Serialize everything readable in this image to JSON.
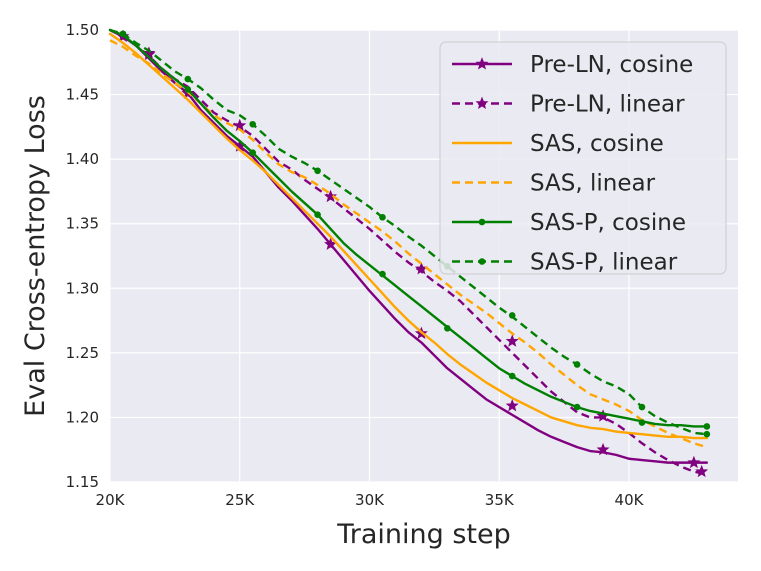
{
  "chart_data": {
    "type": "line",
    "title": "",
    "xlabel": "Training step",
    "ylabel": "Eval Cross-entropy Loss",
    "xlim": [
      20000,
      44200
    ],
    "ylim": [
      1.15,
      1.5
    ],
    "xticks": [
      20000,
      25000,
      30000,
      35000,
      40000
    ],
    "xtick_labels": [
      "20K",
      "25K",
      "30K",
      "35K",
      "40K"
    ],
    "yticks": [
      1.15,
      1.2,
      1.25,
      1.3,
      1.35,
      1.4,
      1.45,
      1.5
    ],
    "ytick_labels": [
      "1.15",
      "1.20",
      "1.25",
      "1.30",
      "1.35",
      "1.40",
      "1.45",
      "1.50"
    ],
    "grid": true,
    "legend_position": "top-right",
    "series": [
      {
        "name": "Pre-LN, cosine",
        "color": "#800080",
        "dash": "solid",
        "marker": "star",
        "x": [
          20000,
          20500,
          21000,
          21500,
          22000,
          22500,
          23000,
          23500,
          24000,
          24500,
          25000,
          25500,
          26000,
          26500,
          27000,
          27500,
          28000,
          28500,
          29000,
          29500,
          30000,
          30500,
          31000,
          31500,
          32000,
          32500,
          33000,
          33500,
          34000,
          34500,
          35000,
          35500,
          36000,
          36500,
          37000,
          37500,
          38000,
          38500,
          39000,
          39500,
          40000,
          40500,
          41000,
          41500,
          42000,
          42500,
          43000
        ],
        "y": [
          1.5,
          1.495,
          1.488,
          1.478,
          1.468,
          1.459,
          1.451,
          1.438,
          1.428,
          1.418,
          1.41,
          1.402,
          1.39,
          1.378,
          1.368,
          1.357,
          1.346,
          1.334,
          1.322,
          1.31,
          1.298,
          1.287,
          1.276,
          1.266,
          1.258,
          1.248,
          1.238,
          1.23,
          1.222,
          1.214,
          1.208,
          1.202,
          1.196,
          1.19,
          1.185,
          1.181,
          1.177,
          1.174,
          1.173,
          1.171,
          1.168,
          1.167,
          1.166,
          1.165,
          1.165,
          1.165,
          1.165
        ],
        "marker_x": [
          20500,
          21500,
          23000,
          25000,
          28500,
          32000,
          35500,
          39000,
          42500
        ],
        "marker_y": [
          1.495,
          1.482,
          1.451,
          1.41,
          1.334,
          1.265,
          1.209,
          1.175,
          1.165
        ]
      },
      {
        "name": "Pre-LN, linear",
        "color": "#800080",
        "dash": "dashed",
        "marker": "star",
        "x": [
          20000,
          20500,
          21000,
          21500,
          22000,
          22500,
          23000,
          23500,
          24000,
          24500,
          25000,
          25500,
          26000,
          26500,
          27000,
          27500,
          28000,
          28500,
          29000,
          29500,
          30000,
          30500,
          31000,
          31500,
          32000,
          32500,
          33000,
          33500,
          34000,
          34500,
          35000,
          35500,
          36000,
          36500,
          37000,
          37500,
          38000,
          38500,
          39000,
          39500,
          40000,
          40500,
          41000,
          41500,
          42000,
          42500,
          43000
        ],
        "y": [
          1.5,
          1.495,
          1.488,
          1.48,
          1.47,
          1.462,
          1.456,
          1.446,
          1.436,
          1.43,
          1.425,
          1.418,
          1.408,
          1.398,
          1.392,
          1.384,
          1.377,
          1.37,
          1.362,
          1.354,
          1.346,
          1.337,
          1.328,
          1.32,
          1.313,
          1.305,
          1.298,
          1.29,
          1.28,
          1.27,
          1.26,
          1.25,
          1.24,
          1.23,
          1.22,
          1.212,
          1.204,
          1.2,
          1.2,
          1.195,
          1.188,
          1.18,
          1.173,
          1.167,
          1.162,
          1.158,
          1.156
        ],
        "marker_x": [
          21500,
          25000,
          28500,
          32000,
          35500,
          39000,
          42800
        ],
        "marker_y": [
          1.481,
          1.426,
          1.371,
          1.315,
          1.259,
          1.201,
          1.158
        ]
      },
      {
        "name": "SAS, cosine",
        "color": "#FFA500",
        "dash": "solid",
        "marker": "none",
        "x": [
          20000,
          20500,
          21000,
          21500,
          22000,
          22500,
          23000,
          23500,
          24000,
          24500,
          25000,
          25500,
          26000,
          26500,
          27000,
          27500,
          28000,
          28500,
          29000,
          29500,
          30000,
          30500,
          31000,
          31500,
          32000,
          32500,
          33000,
          33500,
          34000,
          34500,
          35000,
          35500,
          36000,
          36500,
          37000,
          37500,
          38000,
          38500,
          39000,
          39500,
          40000,
          40500,
          41000,
          41500,
          42000,
          42500,
          43000
        ],
        "y": [
          1.497,
          1.49,
          1.482,
          1.473,
          1.464,
          1.455,
          1.446,
          1.436,
          1.426,
          1.416,
          1.407,
          1.399,
          1.39,
          1.38,
          1.37,
          1.36,
          1.35,
          1.34,
          1.329,
          1.318,
          1.307,
          1.296,
          1.285,
          1.275,
          1.266,
          1.258,
          1.249,
          1.241,
          1.234,
          1.227,
          1.221,
          1.215,
          1.21,
          1.205,
          1.2,
          1.197,
          1.194,
          1.192,
          1.191,
          1.189,
          1.188,
          1.187,
          1.186,
          1.185,
          1.185,
          1.184,
          1.184
        ],
        "marker_x": [],
        "marker_y": []
      },
      {
        "name": "SAS, linear",
        "color": "#FFA500",
        "dash": "dashed",
        "marker": "none",
        "x": [
          20000,
          20500,
          21000,
          21500,
          22000,
          22500,
          23000,
          23500,
          24000,
          24500,
          25000,
          25500,
          26000,
          26500,
          27000,
          27500,
          28000,
          28500,
          29000,
          29500,
          30000,
          30500,
          31000,
          31500,
          32000,
          32500,
          33000,
          33500,
          34000,
          34500,
          35000,
          35500,
          36000,
          36500,
          37000,
          37500,
          38000,
          38500,
          39000,
          39500,
          40000,
          40500,
          41000,
          41500,
          42000,
          42500,
          43000
        ],
        "y": [
          1.492,
          1.487,
          1.48,
          1.474,
          1.466,
          1.459,
          1.452,
          1.443,
          1.434,
          1.428,
          1.423,
          1.415,
          1.405,
          1.396,
          1.39,
          1.386,
          1.38,
          1.373,
          1.365,
          1.358,
          1.351,
          1.344,
          1.336,
          1.327,
          1.319,
          1.311,
          1.303,
          1.295,
          1.288,
          1.281,
          1.273,
          1.265,
          1.258,
          1.25,
          1.241,
          1.233,
          1.225,
          1.218,
          1.214,
          1.21,
          1.205,
          1.198,
          1.193,
          1.188,
          1.184,
          1.18,
          1.177
        ],
        "marker_x": [],
        "marker_y": []
      },
      {
        "name": "SAS-P, cosine",
        "color": "#008000",
        "dash": "solid",
        "marker": "dot",
        "x": [
          20000,
          20500,
          21000,
          21500,
          22000,
          22500,
          23000,
          23500,
          24000,
          24500,
          25000,
          25500,
          26000,
          26500,
          27000,
          27500,
          28000,
          28500,
          29000,
          29500,
          30000,
          30500,
          31000,
          31500,
          32000,
          32500,
          33000,
          33500,
          34000,
          34500,
          35000,
          35500,
          36000,
          36500,
          37000,
          37500,
          38000,
          38500,
          39000,
          39500,
          40000,
          40500,
          41000,
          41500,
          42000,
          42500,
          43000
        ],
        "y": [
          1.5,
          1.496,
          1.488,
          1.479,
          1.47,
          1.462,
          1.454,
          1.443,
          1.432,
          1.422,
          1.414,
          1.405,
          1.395,
          1.385,
          1.375,
          1.366,
          1.357,
          1.346,
          1.335,
          1.326,
          1.318,
          1.31,
          1.302,
          1.294,
          1.286,
          1.278,
          1.27,
          1.262,
          1.254,
          1.246,
          1.238,
          1.232,
          1.226,
          1.221,
          1.216,
          1.212,
          1.208,
          1.205,
          1.203,
          1.201,
          1.199,
          1.197,
          1.195,
          1.194,
          1.194,
          1.193,
          1.193
        ],
        "marker_x": [
          20500,
          23000,
          25500,
          28000,
          30500,
          33000,
          35500,
          38000,
          40500,
          43000
        ],
        "marker_y": [
          1.497,
          1.454,
          1.405,
          1.357,
          1.311,
          1.269,
          1.232,
          1.208,
          1.196,
          1.193
        ]
      },
      {
        "name": "SAS-P, linear",
        "color": "#008000",
        "dash": "dashed",
        "marker": "dot",
        "x": [
          20000,
          20500,
          21000,
          21500,
          22000,
          22500,
          23000,
          23500,
          24000,
          24500,
          25000,
          25500,
          26000,
          26500,
          27000,
          27500,
          28000,
          28500,
          29000,
          29500,
          30000,
          30500,
          31000,
          31500,
          32000,
          32500,
          33000,
          33500,
          34000,
          34500,
          35000,
          35500,
          36000,
          36500,
          37000,
          37500,
          38000,
          38500,
          39000,
          39500,
          40000,
          40500,
          41000,
          41500,
          42000,
          42500,
          43000
        ],
        "y": [
          1.5,
          1.497,
          1.49,
          1.484,
          1.476,
          1.468,
          1.462,
          1.455,
          1.446,
          1.438,
          1.434,
          1.427,
          1.418,
          1.408,
          1.402,
          1.397,
          1.391,
          1.384,
          1.377,
          1.37,
          1.363,
          1.355,
          1.348,
          1.34,
          1.333,
          1.325,
          1.317,
          1.309,
          1.301,
          1.293,
          1.285,
          1.278,
          1.27,
          1.262,
          1.254,
          1.247,
          1.241,
          1.234,
          1.228,
          1.224,
          1.218,
          1.208,
          1.201,
          1.196,
          1.192,
          1.188,
          1.187
        ],
        "marker_x": [
          20500,
          23000,
          25500,
          28000,
          30500,
          33000,
          35500,
          38000,
          40500,
          43000
        ],
        "marker_y": [
          1.497,
          1.462,
          1.427,
          1.391,
          1.355,
          1.317,
          1.279,
          1.241,
          1.208,
          1.187
        ]
      }
    ]
  }
}
